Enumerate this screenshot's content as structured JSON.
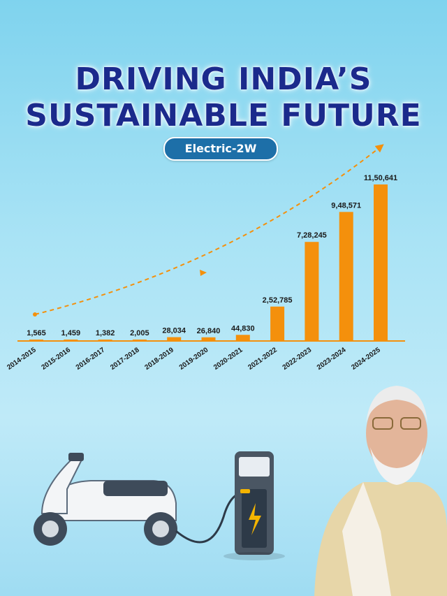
{
  "header": {
    "title_line1": "DRIVING INDIA’S",
    "title_line2": "SUSTAINABLE FUTURE",
    "badge": "Electric-2W"
  },
  "colors": {
    "bar": "#f4900c",
    "title": "#1b2a8c",
    "badge": "#1d6fa8",
    "trend": "#f4900c"
  },
  "chart_data": {
    "type": "bar",
    "title": "",
    "xlabel": "",
    "ylabel": "",
    "categories": [
      "2014-2015",
      "2015-2016",
      "2016-2017",
      "2017-2018",
      "2018-2019",
      "2019-2020",
      "2020-2021",
      "2021-2022",
      "2022-2023",
      "2023-2024",
      "2024-2025"
    ],
    "values": [
      1565,
      1459,
      1382,
      2005,
      28034,
      26840,
      44830,
      252785,
      728245,
      948571,
      1150641
    ],
    "value_labels": [
      "1,565",
      "1,459",
      "1,382",
      "2,005",
      "28,034",
      "26,840",
      "44,830",
      "2,52,785",
      "7,28,245",
      "9,48,571",
      "11,50,641"
    ],
    "ylim": [
      0,
      1150641
    ],
    "grid": false,
    "trend_arrow": true
  }
}
